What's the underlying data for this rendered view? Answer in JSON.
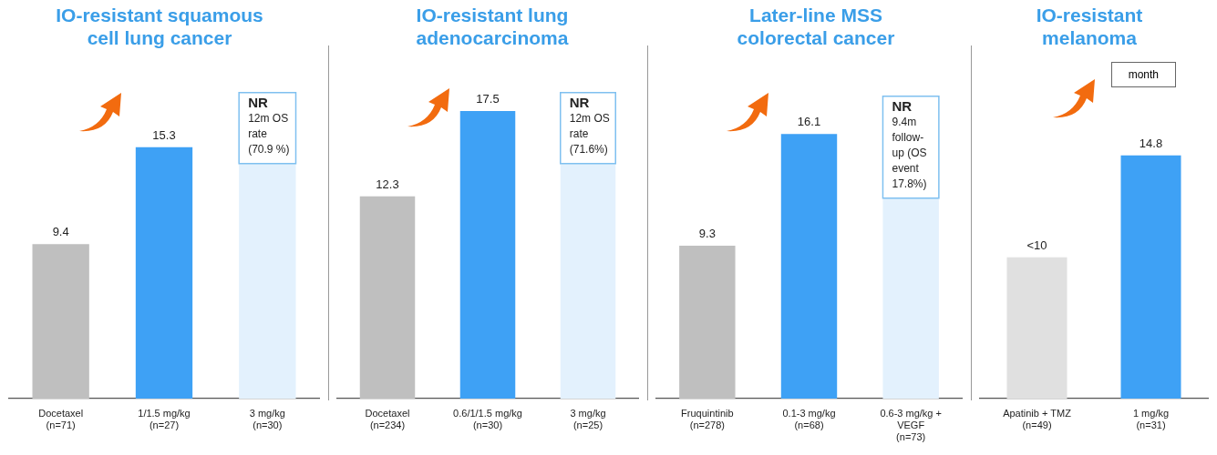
{
  "chart_data": [
    {
      "type": "bar",
      "title": "IO-resistant squamous cell lung cancer",
      "categories": [
        "Docetaxel\n(n=71)",
        "1/1.5 mg/kg\n(n=27)",
        "3 mg/kg\n(n=30)"
      ],
      "values": [
        9.4,
        15.3,
        14.3
      ],
      "colors": [
        "#bfbfbf",
        "#3ea1f5",
        "#e3f1fd"
      ],
      "value_labels": [
        "9.4",
        "15.3",
        null
      ],
      "tick_labels": "x",
      "annotations": [
        {
          "text": "NR\n12m OS\nrate\n(70.9 %)",
          "x": "3 mg/kg\n(n=30)",
          "y": 14.3
        }
      ]
    },
    {
      "type": "bar",
      "title": "IO-resistant lung adenocarcinoma",
      "categories": [
        "Docetaxel\n(n=234)",
        "0.6/1/1.5 mg/kg\n(n=30)",
        "3 mg/kg\n(n=25)"
      ],
      "values": [
        12.3,
        17.5,
        14.3
      ],
      "colors": [
        "#bfbfbf",
        "#3ea1f5",
        "#e3f1fd"
      ],
      "value_labels": [
        "12.3",
        "17.5",
        null
      ],
      "tick_labels": "x",
      "annotations": [
        {
          "text": "NR\n12m OS\nrate\n(71.6%)",
          "x": "3 mg/kg\n(n=25)",
          "y": 14.3
        }
      ]
    },
    {
      "type": "bar",
      "title": "Later-line MSS colorectal cancer",
      "categories": [
        "Fruquintinib\n(n=278)",
        "0.1-3 mg/kg\n(n=68)",
        "0.6-3 mg/kg +\nVEGF\n(n=73)"
      ],
      "values": [
        9.3,
        16.1,
        12.2
      ],
      "colors": [
        "#bfbfbf",
        "#3ea1f5",
        "#e3f1fd"
      ],
      "value_labels": [
        "9.3",
        "16.1",
        null
      ],
      "tick_labels": "x",
      "annotations": [
        {
          "text": "NR\n9.4m\nfollow-\nup (OS\nevent\n17.8%)",
          "x": "0.6-3 mg/kg +\nVEGF\n(n=73)",
          "y": 12.2
        }
      ]
    },
    {
      "type": "bar",
      "title": "IO-resistant melanoma",
      "categories": [
        "Apatinib + TMZ\n(n=49)",
        "1 mg/kg\n(n=31)"
      ],
      "values": [
        8.6,
        14.8
      ],
      "colors": [
        "#e0e0e0",
        "#3ea1f5"
      ],
      "value_labels": [
        "<10",
        "14.8"
      ],
      "tick_labels": "x",
      "annotations": [
        "month"
      ]
    }
  ]
}
